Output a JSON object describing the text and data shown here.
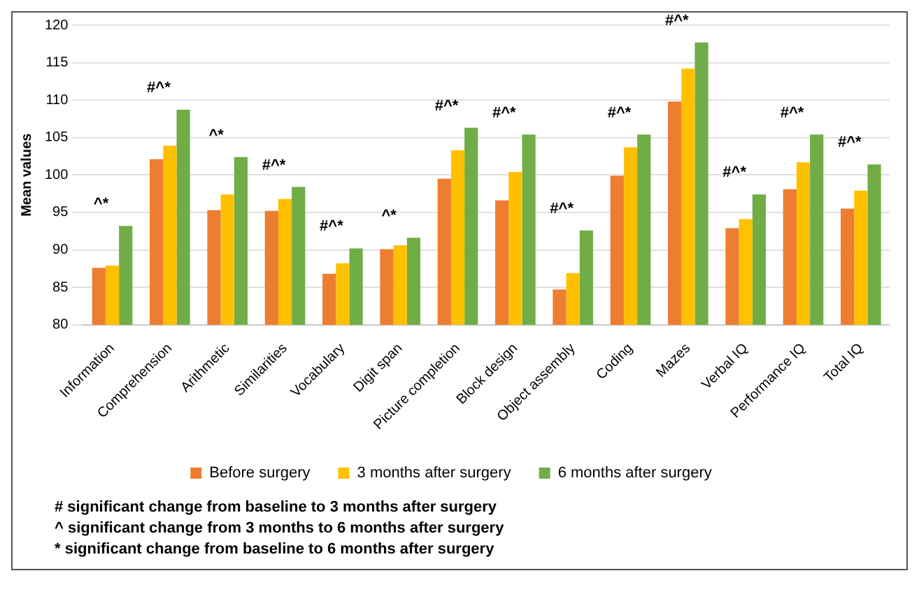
{
  "chart_data": {
    "type": "bar",
    "ylabel": "Mean values",
    "categories": [
      "Information",
      "Comprehension",
      "Arithmetic",
      "Similarities",
      "Vocabulary",
      "Digit span",
      "Picture completion",
      "Block design",
      "Object assembly",
      "Coding",
      "Mazes",
      "Verbal IQ",
      "Performance IQ",
      "Total IQ"
    ],
    "series": [
      {
        "name": "Before surgery",
        "color": "#ed7d31",
        "values": [
          87.6,
          102.1,
          95.3,
          95.2,
          86.8,
          90.1,
          99.5,
          96.6,
          84.7,
          99.9,
          109.8,
          92.9,
          98.1,
          95.5
        ]
      },
      {
        "name": "3 months after surgery",
        "color": "#ffc000",
        "values": [
          87.9,
          103.9,
          97.4,
          96.8,
          88.2,
          90.6,
          103.3,
          100.4,
          86.9,
          103.7,
          114.2,
          94.1,
          101.7,
          97.9
        ]
      },
      {
        "name": "6 months after surgery",
        "color": "#70ad47",
        "values": [
          93.2,
          108.7,
          102.4,
          98.4,
          90.2,
          91.6,
          106.3,
          105.4,
          92.6,
          105.4,
          117.7,
          97.4,
          105.4,
          101.4
        ]
      }
    ],
    "ylim": [
      80,
      120
    ],
    "yticks": [
      80,
      85,
      90,
      95,
      100,
      105,
      110,
      115,
      120
    ],
    "grid": "y",
    "legend": "bottom",
    "annotations": [
      {
        "text": "^*",
        "x": "Information",
        "y": 93.2
      },
      {
        "text": "#^*",
        "x": "Comprehension",
        "y": 108.7
      },
      {
        "text": "^*",
        "x": "Arithmetic",
        "y": 102.4
      },
      {
        "text": "#^*",
        "x": "Similarities",
        "y": 98.4
      },
      {
        "text": "#^*",
        "x": "Vocabulary",
        "y": 90.2
      },
      {
        "text": "^*",
        "x": "Digit span",
        "y": 91.6
      },
      {
        "text": "#^*",
        "x": "Picture completion",
        "y": 106.3
      },
      {
        "text": "#^*",
        "x": "Block design",
        "y": 105.4
      },
      {
        "text": "#^*",
        "x": "Object assembly",
        "y": 92.6
      },
      {
        "text": "#^*",
        "x": "Coding",
        "y": 105.4
      },
      {
        "text": "#^*",
        "x": "Mazes",
        "y": 117.7
      },
      {
        "text": "#^*",
        "x": "Verbal IQ",
        "y": 97.4
      },
      {
        "text": "#^*",
        "x": "Performance IQ",
        "y": 105.4
      },
      {
        "text": "#^*",
        "x": "Total IQ",
        "y": 101.4
      },
      "# significant change from baseline to 3 months after surgery",
      "^ significant change from 3 months to 6 months after surgery",
      "* significant change from baseline to 6 months after surgery"
    ]
  }
}
